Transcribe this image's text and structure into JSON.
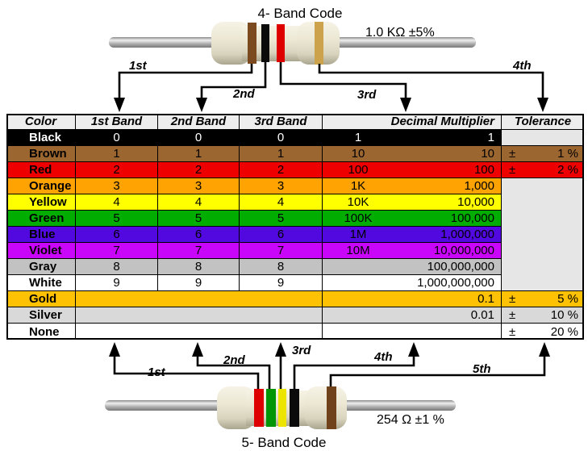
{
  "top_diagram": {
    "title": "4- Band Code",
    "value_label": "1.0 KΩ  ±5%",
    "band_pointer_labels": [
      "1st",
      "2nd",
      "3rd",
      "4th"
    ],
    "bands": [
      {
        "name": "brown",
        "color": "#7B4A1E"
      },
      {
        "name": "black",
        "color": "#0B0B0B"
      },
      {
        "name": "red",
        "color": "#DE0000"
      },
      {
        "name": "gold",
        "color": "#CDA24C"
      }
    ],
    "body_color": "#EBE7D3",
    "lead_color": "#AAAAAA"
  },
  "bottom_diagram": {
    "title": "5- Band Code",
    "value_label": "254 Ω  ±1 %",
    "band_pointer_labels": [
      "1st",
      "2nd",
      "3rd",
      "4th",
      "5th"
    ],
    "bands": [
      {
        "name": "red",
        "color": "#DE0000"
      },
      {
        "name": "green",
        "color": "#009607"
      },
      {
        "name": "yellow",
        "color": "#EDE500"
      },
      {
        "name": "black",
        "color": "#0B0B0B"
      },
      {
        "name": "brown",
        "color": "#6F421C"
      }
    ],
    "body_color": "#EBE7D3",
    "lead_color": "#AAAAAA"
  },
  "table": {
    "headers": [
      "Color",
      "1st Band",
      "2nd Band",
      "3rd Band",
      "Decimal Multiplier",
      "Tolerance"
    ],
    "header_bg": "#EDEDED",
    "tolerance_empty_bg": "#E6E6E6",
    "rows": [
      {
        "name": "Black",
        "bg": "#000000",
        "fg": "#FFFFFF",
        "b1": "0",
        "b2": "0",
        "b3": "0",
        "mult_short": "1",
        "mult_full": "1",
        "tol_sign": "",
        "tol_value": "",
        "tol_bg": "#E6E6E6"
      },
      {
        "name": "Brown",
        "bg": "#9C6630",
        "b1": "1",
        "b2": "1",
        "b3": "1",
        "mult_short": "10",
        "mult_full": "10",
        "tol_sign": "±",
        "tol_value": "1 %"
      },
      {
        "name": "Red",
        "bg": "#EE0000",
        "b1": "2",
        "b2": "2",
        "b3": "2",
        "mult_short": "100",
        "mult_full": "100",
        "tol_sign": "±",
        "tol_value": "2 %"
      },
      {
        "name": "Orange",
        "bg": "#FFA303",
        "b1": "3",
        "b2": "3",
        "b3": "3",
        "mult_short": "1K",
        "mult_full": "1,000",
        "tol_sign": "",
        "tol_value": "",
        "tol_bg": "#E6E6E6",
        "tol_join": true
      },
      {
        "name": "Yellow",
        "bg": "#FFFF00",
        "b1": "4",
        "b2": "4",
        "b3": "4",
        "mult_short": "10K",
        "mult_full": "10,000",
        "tol_sign": "",
        "tol_value": "",
        "tol_bg": "#E6E6E6",
        "tol_join": true
      },
      {
        "name": "Green",
        "bg": "#00AD00",
        "b1": "5",
        "b2": "5",
        "b3": "5",
        "mult_short": "100K",
        "mult_full": "100,000",
        "tol_sign": "",
        "tol_value": "",
        "tol_bg": "#E6E6E6",
        "tol_join": true
      },
      {
        "name": "Blue",
        "bg": "#5209E0",
        "b1": "6",
        "b2": "6",
        "b3": "6",
        "mult_short": "1M",
        "mult_full": "1,000,000",
        "tol_sign": "",
        "tol_value": "",
        "tol_bg": "#E6E6E6",
        "tol_join": true
      },
      {
        "name": "Violet",
        "bg": "#C906FA",
        "b1": "7",
        "b2": "7",
        "b3": "7",
        "mult_short": "10M",
        "mult_full": "10,000,000",
        "tol_sign": "",
        "tol_value": "",
        "tol_bg": "#E6E6E6",
        "tol_join": true
      },
      {
        "name": "Gray",
        "bg": "#C2C2C2",
        "b1": "8",
        "b2": "8",
        "b3": "8",
        "mult_short": "",
        "mult_full": "100,000,000",
        "tol_sign": "",
        "tol_value": "",
        "tol_bg": "#E6E6E6",
        "tol_join": true
      },
      {
        "name": "White",
        "bg": "#FFFFFF",
        "b1": "9",
        "b2": "9",
        "b3": "9",
        "mult_short": "",
        "mult_full": "1,000,000,000",
        "tol_sign": "",
        "tol_value": "",
        "tol_bg": "#E6E6E6"
      },
      {
        "name": "Gold",
        "bg": "#FFC103",
        "merged_bands": true,
        "mult_short": "",
        "mult_full": "0.1",
        "tol_sign": "±",
        "tol_value": "5 %"
      },
      {
        "name": "Silver",
        "bg": "#D9D9D9",
        "merged_bands": true,
        "mult_short": "",
        "mult_full": "0.01",
        "tol_sign": "±",
        "tol_value": "10 %"
      },
      {
        "name": "None",
        "bg": "#FFFFFF",
        "merged_bands": true,
        "mult_short": "",
        "mult_full": "",
        "tol_sign": "±",
        "tol_value": "20 %"
      }
    ]
  }
}
